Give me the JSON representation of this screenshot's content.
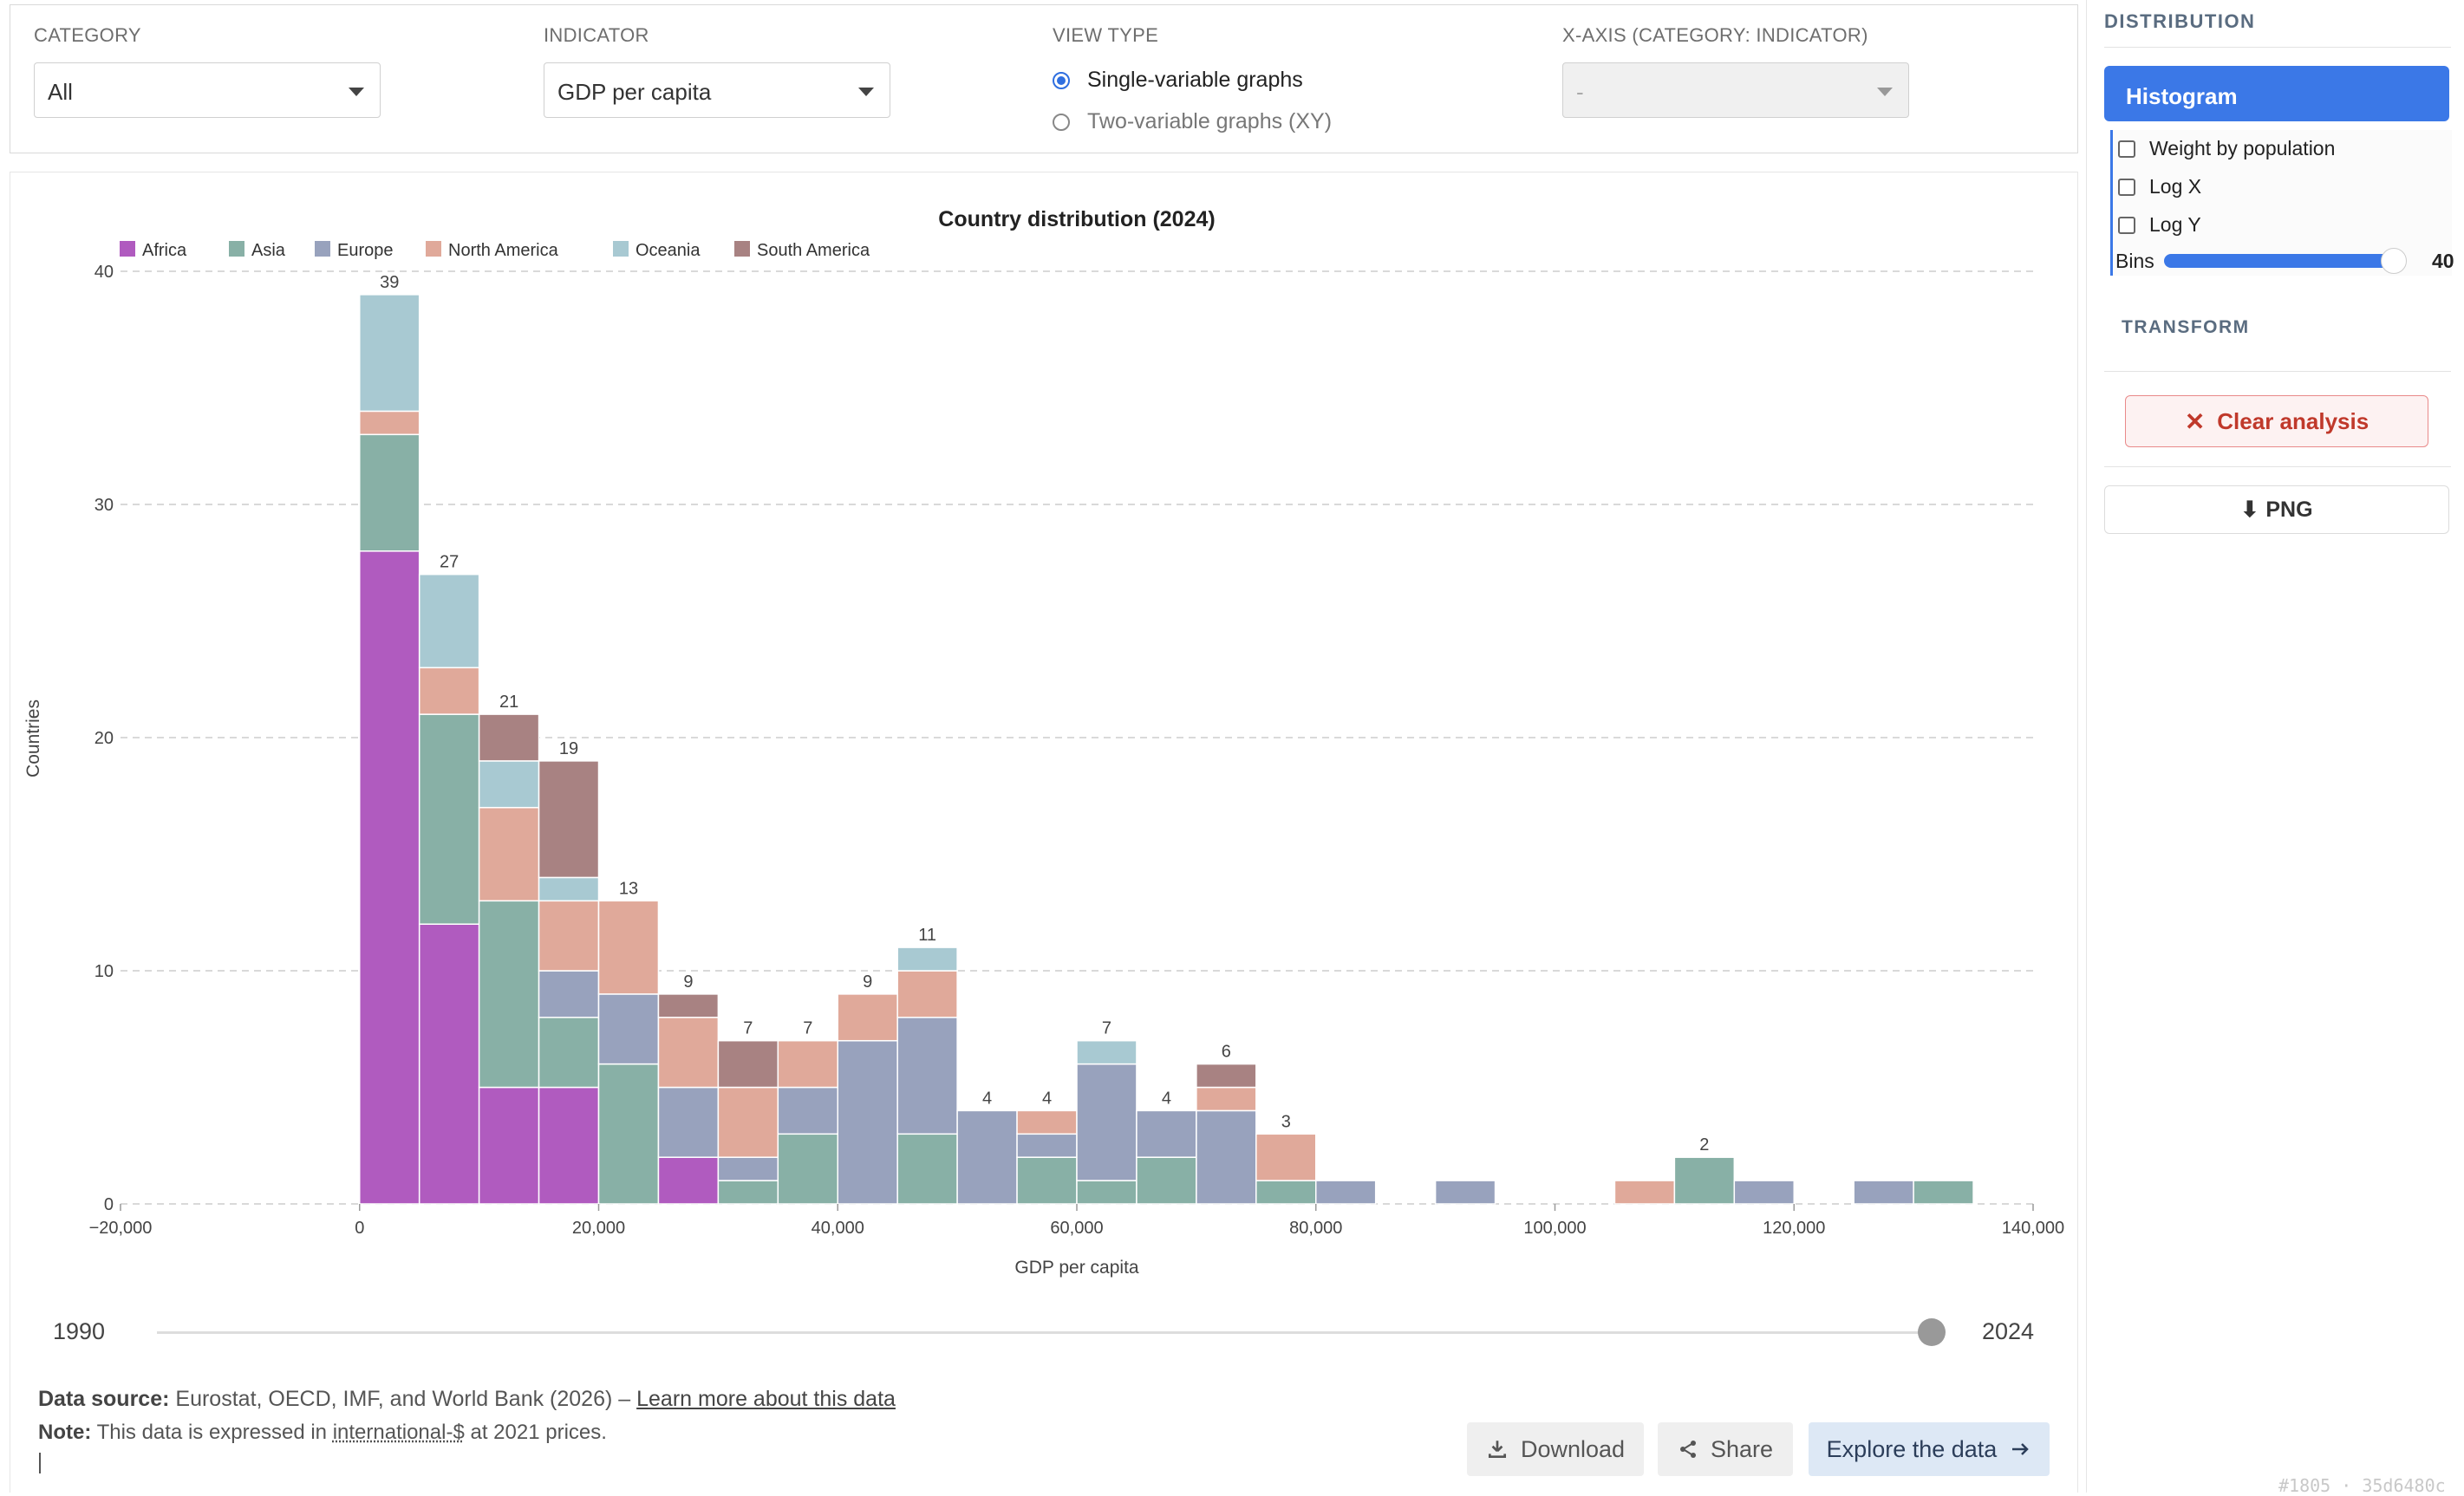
{
  "filters": {
    "category": {
      "label": "CATEGORY",
      "value": "All"
    },
    "indicator": {
      "label": "INDICATOR",
      "value": "GDP per capita"
    },
    "view_type": {
      "label": "VIEW TYPE",
      "options": [
        "Single-variable graphs",
        "Two-variable graphs (XY)"
      ],
      "selected": "Single-variable graphs"
    },
    "xaxis": {
      "label": "X-AXIS (CATEGORY: INDICATOR)",
      "value": "-"
    }
  },
  "time_slider": {
    "start": "1990",
    "end": "2024"
  },
  "source": {
    "label": "Data source:",
    "text": "Eurostat, OECD, IMF, and World Bank (2026) –",
    "link": "Learn more about this data",
    "note_label": "Note:",
    "note_pre": "This data is expressed in",
    "note_link": "international-$",
    "note_post": "at 2021 prices."
  },
  "actions": {
    "download": "Download",
    "share": "Share",
    "explore": "Explore the data"
  },
  "sidebar": {
    "distribution_title": "DISTRIBUTION",
    "histogram_tab": "Histogram",
    "options": [
      "Weight by population",
      "Log X",
      "Log Y"
    ],
    "bins_label": "Bins",
    "bins_value": "40",
    "transform_title": "TRANSFORM",
    "clear_label": "Clear analysis",
    "png_label": "PNG"
  },
  "corner_text": "#1805 · 35d6480c",
  "chart_data": {
    "type": "bar",
    "stacked": true,
    "title": "Country distribution (2024)",
    "xlabel": "GDP per capita",
    "ylabel": "Countries",
    "xlim": [
      -20000,
      140000
    ],
    "ylim": [
      0,
      40
    ],
    "xticks": [
      "−20,000",
      "0",
      "20,000",
      "40,000",
      "60,000",
      "80,000",
      "100,000",
      "120,000",
      "140,000"
    ],
    "yticks": [
      "0",
      "10",
      "20",
      "30",
      "40"
    ],
    "bin_width": 5000,
    "bin_starts": [
      0,
      5000,
      10000,
      15000,
      20000,
      25000,
      30000,
      35000,
      40000,
      45000,
      50000,
      55000,
      60000,
      65000,
      70000,
      75000,
      80000,
      90000,
      105000,
      110000,
      115000,
      125000,
      130000
    ],
    "totals": [
      39,
      27,
      21,
      19,
      13,
      9,
      7,
      7,
      9,
      11,
      4,
      4,
      7,
      4,
      6,
      3,
      1,
      1,
      1,
      2,
      1,
      1,
      1
    ],
    "total_labels": [
      "39",
      "27",
      "21",
      "19",
      "13",
      "9",
      "7",
      "7",
      "9",
      "11",
      "4",
      "4",
      "7",
      "4",
      "6",
      "3",
      "",
      "",
      "",
      "2",
      "",
      "",
      ""
    ],
    "series": [
      {
        "name": "Africa",
        "color": "#b05bbf",
        "values": [
          28,
          12,
          5,
          5,
          0,
          2,
          0,
          0,
          0,
          0,
          0,
          0,
          0,
          0,
          0,
          0,
          0,
          0,
          0,
          0,
          0,
          0,
          0
        ]
      },
      {
        "name": "Asia",
        "color": "#88b0a6",
        "values": [
          5,
          9,
          8,
          3,
          6,
          0,
          1,
          3,
          0,
          3,
          0,
          2,
          1,
          2,
          0,
          1,
          0,
          0,
          0,
          2,
          0,
          0,
          1
        ]
      },
      {
        "name": "Europe",
        "color": "#98a2bd",
        "values": [
          0,
          0,
          0,
          2,
          3,
          3,
          1,
          2,
          7,
          5,
          4,
          1,
          5,
          2,
          4,
          0,
          1,
          1,
          0,
          0,
          1,
          1,
          0
        ]
      },
      {
        "name": "North America",
        "color": "#e0a99a",
        "values": [
          1,
          2,
          4,
          3,
          4,
          3,
          3,
          2,
          2,
          2,
          0,
          1,
          0,
          0,
          1,
          2,
          0,
          0,
          1,
          0,
          0,
          0,
          0
        ]
      },
      {
        "name": "Oceania",
        "color": "#a8c9d2",
        "values": [
          5,
          4,
          2,
          1,
          0,
          0,
          0,
          0,
          0,
          1,
          0,
          0,
          1,
          0,
          0,
          0,
          0,
          0,
          0,
          0,
          0,
          0,
          0
        ]
      },
      {
        "name": "South America",
        "color": "#a88282",
        "values": [
          0,
          0,
          2,
          5,
          0,
          1,
          2,
          0,
          0,
          0,
          0,
          0,
          0,
          0,
          1,
          0,
          0,
          0,
          0,
          0,
          0,
          0,
          0
        ]
      }
    ],
    "legend_placement": "top-left",
    "grid": true
  }
}
